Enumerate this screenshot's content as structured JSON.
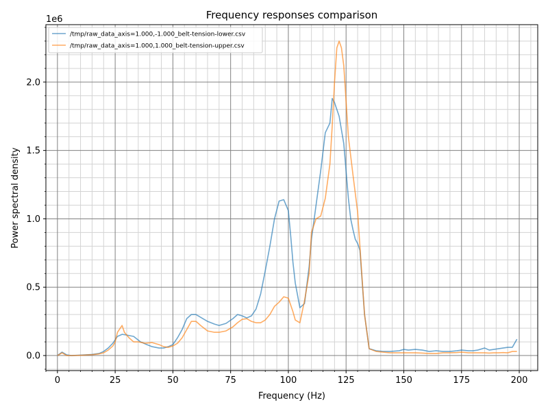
{
  "chart_data": {
    "type": "line",
    "title": "Frequency responses comparison",
    "xlabel": "Frequency (Hz)",
    "ylabel": "Power spectral density",
    "y_offset_text": "1e6",
    "xlim": [
      -5,
      208
    ],
    "ylim": [
      -0.11,
      2.42
    ],
    "x_major_ticks": [
      0,
      25,
      50,
      75,
      100,
      125,
      150,
      175,
      200
    ],
    "x_tick_labels": [
      "0",
      "25",
      "50",
      "75",
      "100",
      "125",
      "150",
      "175",
      "200"
    ],
    "y_major_ticks": [
      0.0,
      0.5,
      1.0,
      1.5,
      2.0
    ],
    "y_tick_labels": [
      "0.0",
      "0.5",
      "1.0",
      "1.5",
      "2.0"
    ],
    "x_minor_step": 5,
    "y_minor_step": 0.1,
    "grid": true,
    "legend_position": "top-left",
    "series": [
      {
        "name": "/tmp/raw_data_axis=1.000,-1.000_belt-tension-lower.csv",
        "color": "#1f77b4",
        "x": [
          0,
          2,
          4,
          6,
          10,
          15,
          18,
          20,
          22,
          24,
          26,
          28,
          30,
          33,
          36,
          38,
          41,
          44,
          46,
          48,
          50,
          52,
          54,
          56,
          58,
          60,
          62,
          65,
          68,
          70,
          73,
          76,
          78,
          80,
          82,
          84,
          86,
          88,
          90,
          92,
          94,
          96,
          98,
          100,
          101,
          102,
          103,
          105,
          107,
          109,
          110,
          112,
          114,
          116,
          118,
          119,
          120,
          122,
          124,
          126,
          127,
          128,
          129,
          130,
          131,
          133,
          135,
          138,
          141,
          144,
          148,
          150,
          152,
          155,
          158,
          161,
          164,
          167,
          170,
          173,
          175,
          178,
          180,
          182,
          185,
          187,
          189,
          191,
          193,
          195,
          197,
          199
        ],
        "y": [
          0.0,
          0.025,
          0.005,
          0.0,
          0.003,
          0.008,
          0.015,
          0.03,
          0.055,
          0.09,
          0.14,
          0.155,
          0.15,
          0.14,
          0.1,
          0.085,
          0.065,
          0.055,
          0.055,
          0.065,
          0.08,
          0.13,
          0.19,
          0.27,
          0.3,
          0.3,
          0.28,
          0.25,
          0.23,
          0.22,
          0.235,
          0.27,
          0.3,
          0.29,
          0.275,
          0.29,
          0.34,
          0.45,
          0.62,
          0.8,
          1.0,
          1.13,
          1.14,
          1.06,
          0.88,
          0.68,
          0.53,
          0.35,
          0.38,
          0.65,
          0.85,
          1.1,
          1.35,
          1.63,
          1.7,
          1.88,
          1.85,
          1.75,
          1.55,
          1.15,
          1.0,
          0.92,
          0.85,
          0.82,
          0.77,
          0.3,
          0.05,
          0.035,
          0.03,
          0.03,
          0.035,
          0.045,
          0.04,
          0.045,
          0.04,
          0.03,
          0.035,
          0.03,
          0.03,
          0.035,
          0.04,
          0.035,
          0.035,
          0.04,
          0.055,
          0.04,
          0.045,
          0.05,
          0.055,
          0.06,
          0.06,
          0.12
        ]
      },
      {
        "name": "/tmp/raw_data_axis=1.000,1.000_belt-tension-upper.csv",
        "color": "#ff7f0e",
        "x": [
          0,
          2,
          4,
          6,
          10,
          15,
          18,
          20,
          22,
          24,
          25,
          26,
          28,
          29,
          31,
          33,
          35,
          38,
          41,
          44,
          46,
          48,
          50,
          52,
          54,
          56,
          58,
          60,
          62,
          65,
          68,
          70,
          73,
          76,
          78,
          80,
          82,
          84,
          86,
          88,
          90,
          92,
          94,
          96,
          98,
          100,
          101,
          102,
          103,
          105,
          107,
          109,
          110,
          112,
          114,
          116,
          118,
          119,
          120,
          121,
          122,
          123,
          124,
          126,
          128,
          130,
          131,
          133,
          135,
          138,
          141,
          144,
          148,
          150,
          152,
          155,
          158,
          161,
          164,
          167,
          170,
          173,
          175,
          178,
          180,
          182,
          185,
          187,
          189,
          191,
          193,
          195,
          197,
          199
        ],
        "y": [
          0.0,
          0.02,
          0.0,
          0.0,
          0.002,
          0.006,
          0.012,
          0.02,
          0.04,
          0.07,
          0.1,
          0.17,
          0.22,
          0.17,
          0.13,
          0.1,
          0.1,
          0.09,
          0.095,
          0.08,
          0.065,
          0.06,
          0.07,
          0.09,
          0.13,
          0.19,
          0.25,
          0.25,
          0.22,
          0.18,
          0.17,
          0.17,
          0.18,
          0.21,
          0.24,
          0.265,
          0.27,
          0.25,
          0.24,
          0.24,
          0.26,
          0.3,
          0.36,
          0.39,
          0.43,
          0.42,
          0.37,
          0.32,
          0.26,
          0.24,
          0.4,
          0.6,
          0.9,
          1.0,
          1.02,
          1.15,
          1.4,
          1.68,
          2.0,
          2.25,
          2.3,
          2.25,
          2.12,
          1.6,
          1.32,
          1.05,
          0.8,
          0.3,
          0.05,
          0.03,
          0.025,
          0.02,
          0.02,
          0.02,
          0.02,
          0.02,
          0.018,
          0.015,
          0.015,
          0.02,
          0.02,
          0.022,
          0.025,
          0.02,
          0.02,
          0.02,
          0.02,
          0.018,
          0.02,
          0.02,
          0.022,
          0.02,
          0.03,
          0.03
        ]
      }
    ]
  }
}
